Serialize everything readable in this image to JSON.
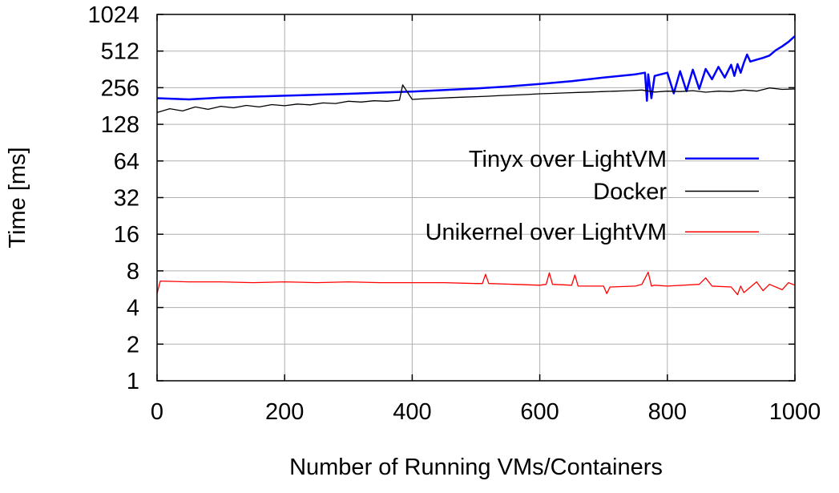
{
  "chart_data": {
    "type": "line",
    "title": "",
    "xlabel": "Number of Running VMs/Containers",
    "ylabel": "Time [ms]",
    "xlim": [
      0,
      1000
    ],
    "ylim": [
      1,
      1024
    ],
    "y_scale": "log2",
    "grid": true,
    "legend_position": "right",
    "x_ticks": [
      0,
      200,
      400,
      600,
      800,
      1000
    ],
    "x_tick_labels": [
      "0",
      "200",
      "400",
      "600",
      "800",
      "1000"
    ],
    "y_ticks": [
      1,
      2,
      4,
      8,
      16,
      32,
      64,
      128,
      256,
      512,
      1024
    ],
    "y_tick_labels": [
      "1",
      "2",
      "4",
      "8",
      "16",
      "32",
      "64",
      "128",
      "256",
      "512",
      "1024"
    ],
    "series": [
      {
        "name": "Tinyx over LightVM",
        "color": "#0000ff",
        "style": "solid",
        "x": [
          0,
          50,
          100,
          200,
          300,
          400,
          500,
          550,
          600,
          650,
          700,
          750,
          765,
          768,
          770,
          775,
          780,
          800,
          810,
          820,
          830,
          840,
          850,
          860,
          870,
          880,
          890,
          900,
          905,
          910,
          915,
          920,
          925,
          930,
          940,
          950,
          960,
          970,
          980,
          990,
          1000
        ],
        "values": [
          210,
          205,
          212,
          220,
          228,
          238,
          252,
          262,
          275,
          290,
          310,
          330,
          340,
          200,
          330,
          210,
          320,
          340,
          230,
          350,
          240,
          360,
          250,
          365,
          300,
          380,
          310,
          395,
          320,
          400,
          340,
          410,
          480,
          420,
          435,
          450,
          470,
          520,
          560,
          610,
          680
        ]
      },
      {
        "name": "Docker",
        "color": "#000000",
        "style": "solid",
        "x": [
          0,
          20,
          40,
          60,
          80,
          100,
          120,
          140,
          160,
          180,
          200,
          220,
          240,
          260,
          280,
          300,
          320,
          340,
          360,
          380,
          385,
          400,
          420,
          440,
          460,
          480,
          500,
          520,
          540,
          560,
          580,
          600,
          620,
          640,
          660,
          680,
          700,
          720,
          740,
          760,
          780,
          800,
          820,
          840,
          860,
          880,
          900,
          920,
          940,
          960,
          980,
          1000
        ],
        "values": [
          160,
          172,
          165,
          178,
          170,
          180,
          175,
          183,
          178,
          186,
          182,
          188,
          185,
          192,
          190,
          198,
          195,
          200,
          198,
          202,
          270,
          205,
          208,
          210,
          212,
          214,
          216,
          218,
          221,
          223,
          225,
          228,
          230,
          232,
          234,
          236,
          238,
          240,
          242,
          245,
          236,
          240,
          238,
          242,
          235,
          240,
          238,
          245,
          240,
          255,
          248,
          250
        ]
      },
      {
        "name": "Unikernel over LightVM",
        "color": "#ff0000",
        "style": "solid",
        "x": [
          0,
          5,
          50,
          100,
          150,
          200,
          250,
          300,
          350,
          400,
          450,
          500,
          510,
          515,
          520,
          560,
          600,
          610,
          615,
          620,
          650,
          655,
          660,
          700,
          705,
          710,
          750,
          760,
          770,
          775,
          780,
          800,
          850,
          860,
          870,
          900,
          910,
          915,
          920,
          940,
          950,
          960,
          980,
          990,
          1000
        ],
        "values": [
          5.2,
          6.6,
          6.5,
          6.5,
          6.4,
          6.5,
          6.4,
          6.5,
          6.4,
          6.4,
          6.4,
          6.3,
          6.3,
          7.5,
          6.3,
          6.2,
          6.1,
          6.2,
          7.7,
          6.2,
          6.1,
          7.4,
          6.0,
          6.0,
          5.2,
          5.9,
          6.0,
          6.2,
          7.8,
          6.0,
          6.1,
          6.0,
          6.2,
          7.0,
          6.0,
          5.9,
          5.1,
          6.0,
          5.3,
          6.5,
          5.5,
          6.2,
          5.6,
          6.4,
          6.1
        ]
      }
    ]
  }
}
